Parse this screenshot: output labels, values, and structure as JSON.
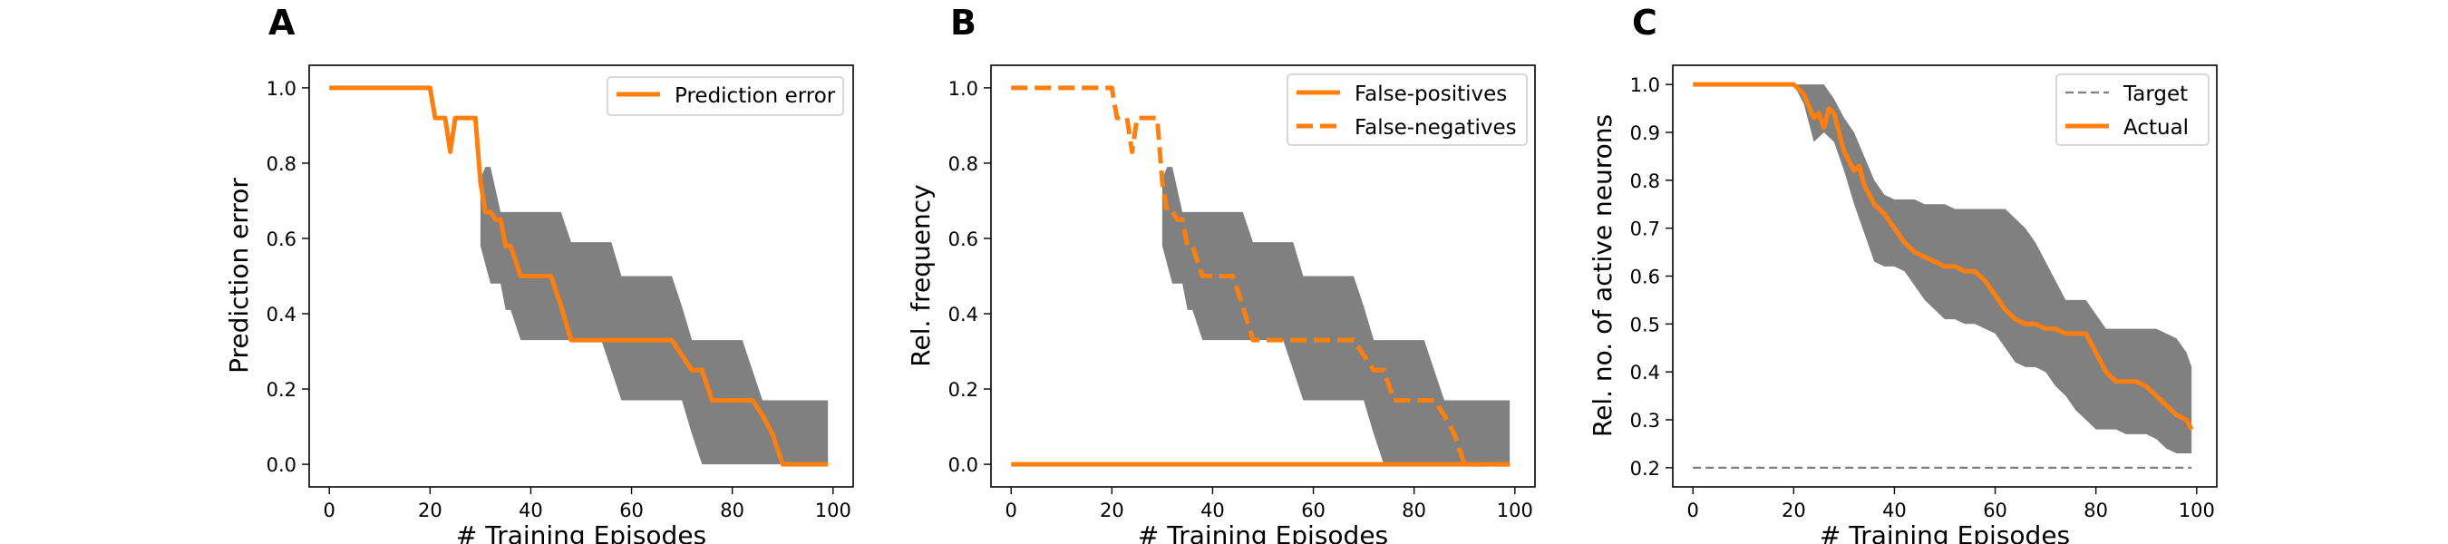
{
  "colors": {
    "series": "#ff7f0e",
    "band": "#808080",
    "target": "#7f7f7f",
    "axis": "#000000"
  },
  "chart_data": [
    {
      "panel_label": "A",
      "type": "line",
      "xlabel": "# Training Episodes",
      "ylabel": "Prediction error",
      "xlim": [
        -4,
        104
      ],
      "ylim": [
        -0.06,
        1.06
      ],
      "xticks": [
        0,
        20,
        40,
        60,
        80,
        100
      ],
      "xtick_labels": [
        "0",
        "20",
        "40",
        "60",
        "80",
        "100"
      ],
      "yticks": [
        0,
        0.2,
        0.4,
        0.6,
        0.8,
        1.0
      ],
      "ytick_labels": [
        "0.0",
        "0.2",
        "0.4",
        "0.6",
        "0.8",
        "1.0"
      ],
      "legend_position": "top-right",
      "band": {
        "x": [
          30,
          31,
          32,
          33,
          34,
          35,
          36,
          38,
          40,
          42,
          44,
          46,
          48,
          50,
          52,
          54,
          56,
          58,
          60,
          62,
          64,
          66,
          68,
          70,
          72,
          74,
          76,
          78,
          80,
          82,
          84,
          86,
          88,
          90,
          92,
          94,
          96,
          98,
          99
        ],
        "upper": [
          0.76,
          0.79,
          0.79,
          0.73,
          0.67,
          0.67,
          0.67,
          0.67,
          0.67,
          0.67,
          0.67,
          0.67,
          0.59,
          0.59,
          0.59,
          0.59,
          0.59,
          0.5,
          0.5,
          0.5,
          0.5,
          0.5,
          0.5,
          0.42,
          0.33,
          0.33,
          0.33,
          0.33,
          0.33,
          0.33,
          0.25,
          0.17,
          0.17,
          0.17,
          0.17,
          0.17,
          0.17,
          0.17,
          0.17
        ],
        "lower": [
          0.58,
          0.53,
          0.48,
          0.48,
          0.48,
          0.41,
          0.41,
          0.33,
          0.33,
          0.33,
          0.33,
          0.33,
          0.33,
          0.33,
          0.33,
          0.33,
          0.25,
          0.17,
          0.17,
          0.17,
          0.17,
          0.17,
          0.17,
          0.17,
          0.08,
          0.0,
          0.0,
          0.0,
          0.0,
          0.0,
          0.0,
          0.0,
          0.0,
          0.0,
          0.0,
          0.0,
          0.0,
          0.0,
          0.0
        ]
      },
      "series": [
        {
          "name": "Prediction error",
          "style": "solid",
          "x": [
            0,
            20,
            21,
            23,
            24,
            25,
            26,
            29,
            30,
            31,
            32,
            33,
            34,
            35,
            36,
            38,
            40,
            44,
            46,
            48,
            50,
            52,
            54,
            58,
            62,
            66,
            68,
            70,
            72,
            74,
            76,
            80,
            84,
            86,
            88,
            90,
            91,
            95,
            99
          ],
          "y": [
            1.0,
            1.0,
            0.92,
            0.92,
            0.83,
            0.92,
            0.92,
            0.92,
            0.75,
            0.67,
            0.67,
            0.65,
            0.65,
            0.58,
            0.58,
            0.5,
            0.5,
            0.5,
            0.42,
            0.33,
            0.33,
            0.33,
            0.33,
            0.33,
            0.33,
            0.33,
            0.33,
            0.29,
            0.25,
            0.25,
            0.17,
            0.17,
            0.17,
            0.13,
            0.08,
            0.0,
            0.0,
            0.0,
            0.0
          ]
        }
      ]
    },
    {
      "panel_label": "B",
      "type": "line",
      "xlabel": "# Training Episodes",
      "ylabel": "Rel. frequency",
      "xlim": [
        -4,
        104
      ],
      "ylim": [
        -0.06,
        1.06
      ],
      "xticks": [
        0,
        20,
        40,
        60,
        80,
        100
      ],
      "xtick_labels": [
        "0",
        "20",
        "40",
        "60",
        "80",
        "100"
      ],
      "yticks": [
        0,
        0.2,
        0.4,
        0.6,
        0.8,
        1.0
      ],
      "ytick_labels": [
        "0.0",
        "0.2",
        "0.4",
        "0.6",
        "0.8",
        "1.0"
      ],
      "legend_position": "top-right",
      "band": {
        "x": [
          30,
          31,
          32,
          33,
          34,
          35,
          36,
          38,
          40,
          42,
          44,
          46,
          48,
          50,
          52,
          54,
          56,
          58,
          60,
          62,
          64,
          66,
          68,
          70,
          72,
          74,
          76,
          78,
          80,
          82,
          84,
          86,
          88,
          90,
          92,
          94,
          96,
          98,
          99
        ],
        "upper": [
          0.76,
          0.79,
          0.79,
          0.73,
          0.67,
          0.67,
          0.67,
          0.67,
          0.67,
          0.67,
          0.67,
          0.67,
          0.59,
          0.59,
          0.59,
          0.59,
          0.59,
          0.5,
          0.5,
          0.5,
          0.5,
          0.5,
          0.5,
          0.42,
          0.33,
          0.33,
          0.33,
          0.33,
          0.33,
          0.33,
          0.25,
          0.17,
          0.17,
          0.17,
          0.17,
          0.17,
          0.17,
          0.17,
          0.17
        ],
        "lower": [
          0.58,
          0.53,
          0.48,
          0.48,
          0.48,
          0.41,
          0.41,
          0.33,
          0.33,
          0.33,
          0.33,
          0.33,
          0.33,
          0.33,
          0.33,
          0.33,
          0.25,
          0.17,
          0.17,
          0.17,
          0.17,
          0.17,
          0.17,
          0.17,
          0.08,
          0.0,
          0.0,
          0.0,
          0.0,
          0.0,
          0.0,
          0.0,
          0.0,
          0.0,
          0.0,
          0.0,
          0.0,
          0.0,
          0.0
        ]
      },
      "series": [
        {
          "name": "False-positives",
          "style": "solid",
          "x": [
            0,
            99
          ],
          "y": [
            0.0,
            0.0
          ]
        },
        {
          "name": "False-negatives",
          "style": "dashed",
          "x": [
            0,
            20,
            21,
            23,
            24,
            25,
            26,
            29,
            30,
            31,
            32,
            33,
            34,
            35,
            36,
            38,
            40,
            44,
            46,
            48,
            50,
            52,
            54,
            58,
            62,
            66,
            68,
            70,
            72,
            74,
            76,
            80,
            84,
            86,
            88,
            90,
            91,
            95,
            99
          ],
          "y": [
            1.0,
            1.0,
            0.92,
            0.92,
            0.83,
            0.92,
            0.92,
            0.92,
            0.75,
            0.67,
            0.67,
            0.65,
            0.65,
            0.58,
            0.58,
            0.5,
            0.5,
            0.5,
            0.42,
            0.33,
            0.33,
            0.33,
            0.33,
            0.33,
            0.33,
            0.33,
            0.33,
            0.29,
            0.25,
            0.25,
            0.17,
            0.17,
            0.17,
            0.13,
            0.08,
            0.0,
            0.0,
            0.0,
            0.0
          ]
        }
      ]
    },
    {
      "panel_label": "C",
      "type": "line",
      "xlabel": "# Training Episodes",
      "ylabel": "Rel. no. of active neurons",
      "xlim": [
        -4,
        104
      ],
      "ylim": [
        0.16,
        1.04
      ],
      "xticks": [
        0,
        20,
        40,
        60,
        80,
        100
      ],
      "xtick_labels": [
        "0",
        "20",
        "40",
        "60",
        "80",
        "100"
      ],
      "yticks": [
        0.2,
        0.3,
        0.4,
        0.5,
        0.6,
        0.7,
        0.8,
        0.9,
        1.0
      ],
      "ytick_labels": [
        "0.2",
        "0.3",
        "0.4",
        "0.5",
        "0.6",
        "0.7",
        "0.8",
        "0.9",
        "1.0"
      ],
      "legend_position": "top-right",
      "band": {
        "x": [
          20,
          22,
          24,
          26,
          28,
          30,
          32,
          34,
          36,
          38,
          40,
          42,
          44,
          46,
          48,
          50,
          52,
          54,
          56,
          58,
          60,
          62,
          64,
          66,
          68,
          70,
          72,
          74,
          76,
          78,
          80,
          82,
          84,
          86,
          88,
          90,
          92,
          94,
          96,
          98,
          99
        ],
        "upper": [
          1.0,
          1.0,
          1.0,
          1.0,
          0.97,
          0.93,
          0.9,
          0.85,
          0.8,
          0.77,
          0.76,
          0.76,
          0.76,
          0.75,
          0.75,
          0.75,
          0.74,
          0.74,
          0.74,
          0.74,
          0.74,
          0.74,
          0.72,
          0.7,
          0.67,
          0.63,
          0.59,
          0.55,
          0.55,
          0.55,
          0.52,
          0.49,
          0.49,
          0.49,
          0.49,
          0.49,
          0.49,
          0.48,
          0.47,
          0.44,
          0.41
        ],
        "lower": [
          1.0,
          0.96,
          0.88,
          0.9,
          0.88,
          0.82,
          0.75,
          0.69,
          0.63,
          0.62,
          0.62,
          0.61,
          0.58,
          0.55,
          0.53,
          0.51,
          0.51,
          0.5,
          0.5,
          0.49,
          0.48,
          0.45,
          0.42,
          0.41,
          0.41,
          0.4,
          0.37,
          0.35,
          0.32,
          0.3,
          0.28,
          0.28,
          0.28,
          0.27,
          0.27,
          0.27,
          0.26,
          0.24,
          0.23,
          0.23,
          0.23
        ]
      },
      "series": [
        {
          "name": "Target",
          "style": "dashed-thin",
          "x": [
            0,
            99
          ],
          "y": [
            0.2,
            0.2
          ]
        },
        {
          "name": "Actual",
          "style": "solid",
          "x": [
            0,
            20,
            22,
            24,
            25,
            26,
            27,
            28,
            30,
            32,
            33,
            34,
            36,
            38,
            40,
            42,
            44,
            46,
            48,
            50,
            52,
            54,
            56,
            58,
            60,
            62,
            64,
            66,
            68,
            70,
            72,
            74,
            76,
            78,
            80,
            82,
            84,
            86,
            88,
            90,
            92,
            94,
            96,
            98,
            99
          ],
          "y": [
            1.0,
            1.0,
            0.98,
            0.93,
            0.94,
            0.91,
            0.95,
            0.94,
            0.86,
            0.82,
            0.83,
            0.79,
            0.75,
            0.73,
            0.7,
            0.67,
            0.65,
            0.64,
            0.63,
            0.62,
            0.62,
            0.61,
            0.61,
            0.59,
            0.56,
            0.53,
            0.51,
            0.5,
            0.5,
            0.49,
            0.49,
            0.48,
            0.48,
            0.48,
            0.44,
            0.4,
            0.38,
            0.38,
            0.38,
            0.37,
            0.35,
            0.33,
            0.31,
            0.3,
            0.28
          ]
        }
      ]
    }
  ]
}
